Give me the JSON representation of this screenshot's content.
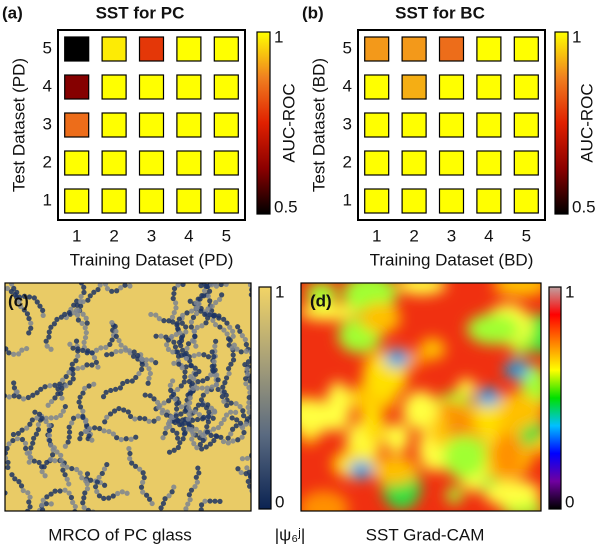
{
  "chart_data": [
    {
      "type": "heatmap",
      "panel_label": "(a)",
      "title": "SST for PC",
      "x_label": "Training Dataset (PD)",
      "y_label": "Test Dataset (PD)",
      "x_categories": [
        "1",
        "2",
        "3",
        "4",
        "5"
      ],
      "y_categories": [
        "1",
        "2",
        "3",
        "4",
        "5"
      ],
      "values": [
        [
          1,
          1,
          1,
          1,
          1
        ],
        [
          1,
          1,
          1,
          1,
          1
        ],
        [
          0.85,
          1,
          1,
          1,
          1
        ],
        [
          0.62,
          1,
          1,
          1,
          1
        ],
        [
          0.5,
          0.98,
          0.78,
          1,
          1
        ]
      ],
      "colorbar_label": "AUC-ROC",
      "clim": [
        0.5,
        1
      ],
      "cticks": [
        0.5,
        1
      ],
      "colormap": [
        "#000000",
        "#8b0000",
        "#e02000",
        "#f08020",
        "#ffff00"
      ]
    },
    {
      "type": "heatmap",
      "panel_label": "(b)",
      "title": "SST for BC",
      "x_label": "Training Dataset (BD)",
      "y_label": "Test Dataset (BD)",
      "x_categories": [
        "1",
        "2",
        "3",
        "4",
        "5"
      ],
      "y_categories": [
        "1",
        "2",
        "3",
        "4",
        "5"
      ],
      "values": [
        [
          1,
          1,
          1,
          1,
          1
        ],
        [
          1,
          1,
          1,
          1,
          1
        ],
        [
          1,
          1,
          1,
          1,
          1
        ],
        [
          1,
          0.92,
          1,
          1,
          1
        ],
        [
          0.9,
          0.9,
          0.85,
          1,
          1
        ]
      ],
      "colorbar_label": "AUC-ROC",
      "clim": [
        0.5,
        1
      ],
      "cticks": [
        0.5,
        1
      ],
      "colormap": [
        "#000000",
        "#8b0000",
        "#e02000",
        "#f08020",
        "#ffff00"
      ]
    },
    {
      "type": "image",
      "panel_label": "(c)",
      "caption": "MRCO of PC glass",
      "colorbar_label": "|ψ₆ʲ|",
      "clim": [
        0,
        1
      ],
      "cticks": [
        0,
        1
      ],
      "colormap": [
        "#0b2352",
        "#5a6a80",
        "#a8a078",
        "#f2d466"
      ]
    },
    {
      "type": "image",
      "panel_label": "(d)",
      "caption": "SST Grad-CAM",
      "clim": [
        0,
        1
      ],
      "cticks": [
        0,
        1
      ],
      "colormap": [
        "#000000",
        "#7000a0",
        "#0000ff",
        "#00c0ff",
        "#00e000",
        "#ffff00",
        "#ff8000",
        "#ff0000",
        "#c0a0a0"
      ]
    }
  ]
}
